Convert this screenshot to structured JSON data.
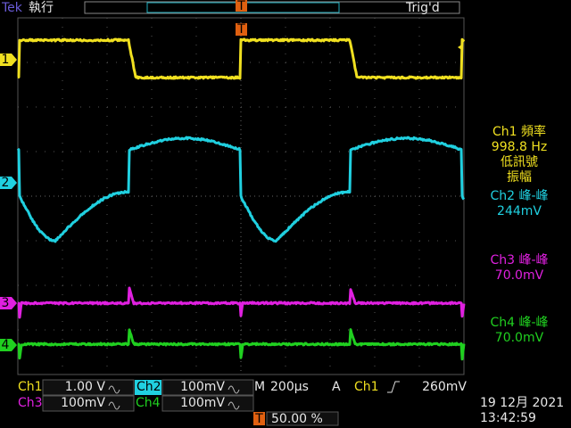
{
  "header": {
    "brand": "Tek",
    "run_state": "執行",
    "trigger_status": "Trig'd",
    "trigger_marker": "T",
    "trigger_level_marker": "T"
  },
  "channel_markers": [
    "1",
    "2",
    "3",
    "4"
  ],
  "measurements": [
    {
      "label": "Ch1 頻率",
      "value": "998.8 Hz",
      "notes": [
        "低訊號",
        "振幅"
      ]
    },
    {
      "label": "Ch2 峰-峰",
      "value": "244mV"
    },
    {
      "label": "Ch3 峰-峰",
      "value": "70.0mV"
    },
    {
      "label": "Ch4 峰-峰",
      "value": "70.0mV"
    }
  ],
  "status_bar": {
    "ch1": {
      "name": "Ch1",
      "scale": "1.00 V"
    },
    "ch2": {
      "name": "Ch2",
      "scale": "100mV"
    },
    "ch3": {
      "name": "Ch3",
      "scale": "100mV"
    },
    "ch4": {
      "name": "Ch4",
      "scale": "100mV"
    },
    "timebase": {
      "label": "M",
      "value": "200µs"
    },
    "trigger": {
      "label": "A",
      "source": "Ch1",
      "level": "260mV"
    },
    "position": {
      "marker": "T",
      "value": "50.00 %"
    },
    "date": "19 12月 2021",
    "time": "13:42:59"
  }
}
